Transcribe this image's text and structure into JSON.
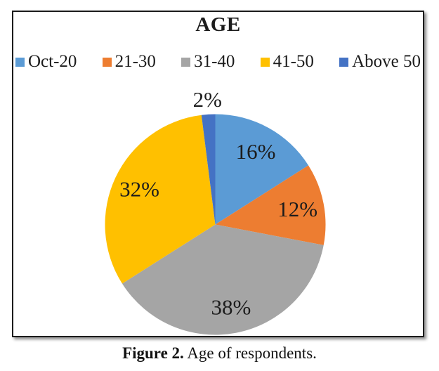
{
  "chart_data": {
    "type": "pie",
    "title": "AGE",
    "legend_position": "top",
    "labels_format": "percent",
    "start_angle_deg": 0,
    "direction": "clockwise",
    "slices": [
      {
        "label": "Oct-20",
        "value": 16,
        "display": "16%",
        "color": "#5B9BD5"
      },
      {
        "label": "21-30",
        "value": 12,
        "display": "12%",
        "color": "#ED7D31"
      },
      {
        "label": "31-40",
        "value": 38,
        "display": "38%",
        "color": "#A5A5A5"
      },
      {
        "label": "41-50",
        "value": 32,
        "display": "32%",
        "color": "#FFC000"
      },
      {
        "label": "Above 50",
        "value": 2,
        "display": "2%",
        "color": "#4472C4"
      }
    ]
  },
  "caption": {
    "label": "Figure 2.",
    "text": "Age of respondents."
  },
  "colors": {
    "border": "#1b1b1b",
    "label_text": "#1c1c1c",
    "background": "#ffffff"
  }
}
